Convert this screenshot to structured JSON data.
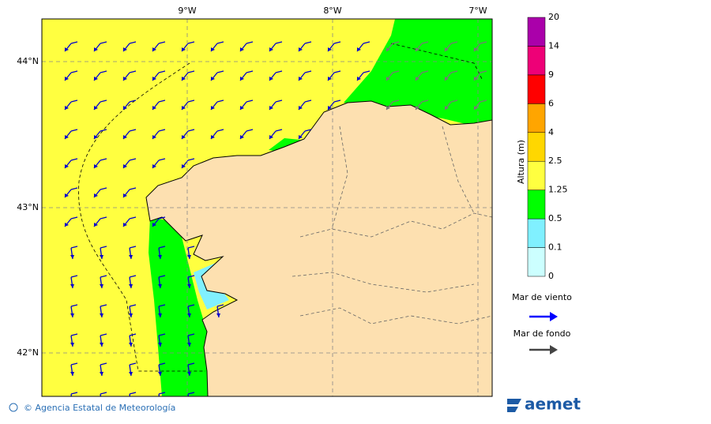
{
  "map": {
    "lon_labels": [
      "9°W",
      "8°W",
      "7°W"
    ],
    "lat_labels": [
      "44°N",
      "43°N",
      "42°N"
    ]
  },
  "legend": {
    "title": "Altura (m)",
    "levels": [
      "0",
      "0.1",
      "0.5",
      "1.25",
      "2.5",
      "4",
      "6",
      "9",
      "14",
      "20"
    ],
    "colors": [
      "#ccffff",
      "#80f0ff",
      "#00ff00",
      "#ffff40",
      "#ffd700",
      "#ffa500",
      "#ff0000",
      "#ee0077",
      "#aa00aa"
    ],
    "wind_sea": "Mar de viento",
    "swell": "Mar de fondo"
  },
  "footer": {
    "credit": "© Agencia Estatal de Meteorología",
    "logo": "aemet"
  }
}
